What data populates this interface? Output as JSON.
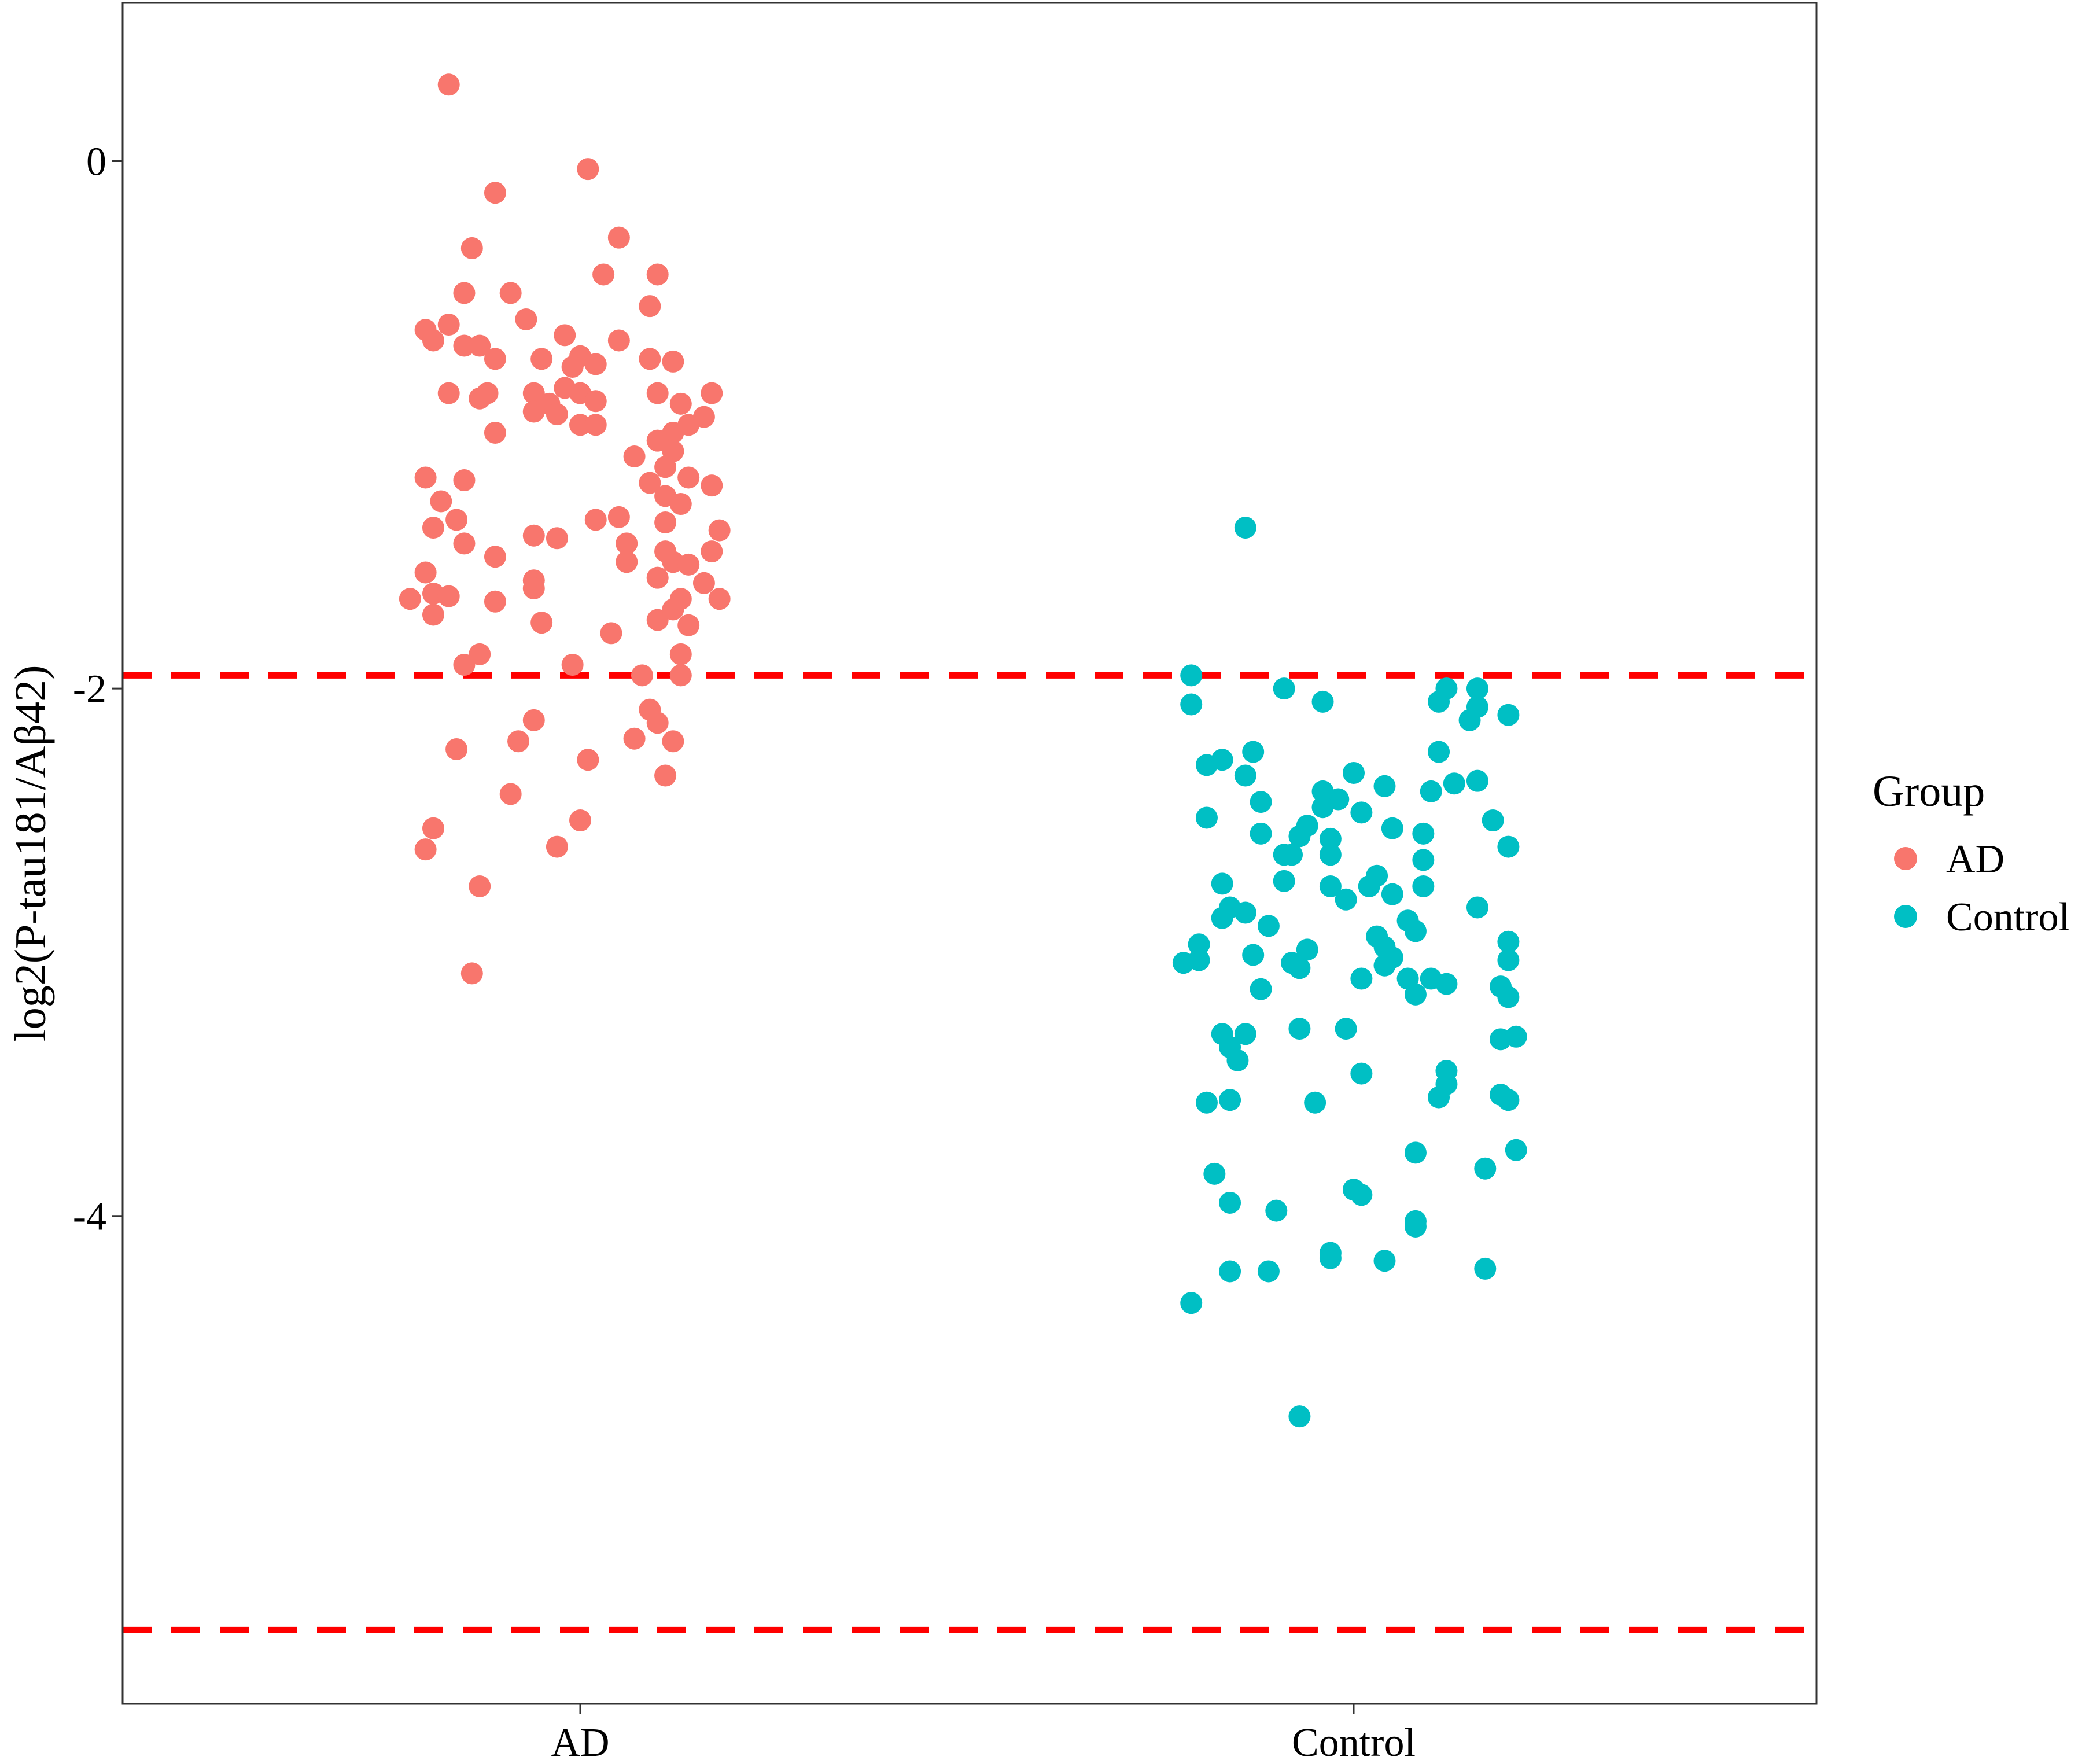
{
  "chart_data": {
    "type": "scatter",
    "title": "",
    "xlabel": "",
    "ylabel": "log2(P-tau181/Aβ42)",
    "categories": [
      "AD",
      "Control"
    ],
    "ylim": [
      -5.85,
      0.6
    ],
    "yticks": [
      0,
      -2,
      -4
    ],
    "ytick_labels": [
      "0",
      "-2",
      "-4"
    ],
    "grid": false,
    "reference_lines": [
      {
        "y": -1.95,
        "color": "#ff0000",
        "style": "dashed"
      },
      {
        "y": -5.57,
        "color": "#ff0000",
        "style": "dashed"
      }
    ],
    "legend": {
      "title": "Group",
      "placement": "right",
      "entries": [
        {
          "label": "AD",
          "color": "#f8766d"
        },
        {
          "label": "Control",
          "color": "#00bfc4"
        }
      ]
    },
    "series": [
      {
        "name": "AD",
        "color": "#f8766d",
        "points": [
          {
            "x": -0.17,
            "y": 0.29
          },
          {
            "x": 0.01,
            "y": -0.03
          },
          {
            "x": -0.11,
            "y": -0.12
          },
          {
            "x": 0.05,
            "y": -0.29
          },
          {
            "x": -0.14,
            "y": -0.33
          },
          {
            "x": 0.03,
            "y": -0.43
          },
          {
            "x": 0.1,
            "y": -0.43
          },
          {
            "x": -0.15,
            "y": -0.5
          },
          {
            "x": -0.09,
            "y": -0.5
          },
          {
            "x": 0.09,
            "y": -0.55
          },
          {
            "x": -0.07,
            "y": -0.6
          },
          {
            "x": -0.2,
            "y": -0.64
          },
          {
            "x": -0.17,
            "y": -0.62
          },
          {
            "x": -0.19,
            "y": -0.68
          },
          {
            "x": -0.15,
            "y": -0.7
          },
          {
            "x": -0.13,
            "y": -0.7
          },
          {
            "x": -0.11,
            "y": -0.75
          },
          {
            "x": -0.05,
            "y": -0.75
          },
          {
            "x": -0.02,
            "y": -0.66
          },
          {
            "x": 0.0,
            "y": -0.74
          },
          {
            "x": 0.05,
            "y": -0.68
          },
          {
            "x": -0.01,
            "y": -0.78
          },
          {
            "x": 0.02,
            "y": -0.77
          },
          {
            "x": 0.09,
            "y": -0.75
          },
          {
            "x": 0.12,
            "y": -0.76
          },
          {
            "x": -0.17,
            "y": -0.88
          },
          {
            "x": -0.13,
            "y": -0.9
          },
          {
            "x": -0.12,
            "y": -0.88
          },
          {
            "x": -0.06,
            "y": -0.88
          },
          {
            "x": -0.04,
            "y": -0.92
          },
          {
            "x": -0.02,
            "y": -0.86
          },
          {
            "x": 0.0,
            "y": -0.88
          },
          {
            "x": 0.02,
            "y": -0.91
          },
          {
            "x": -0.06,
            "y": -0.95
          },
          {
            "x": -0.03,
            "y": -0.96
          },
          {
            "x": 0.0,
            "y": -1.0
          },
          {
            "x": 0.02,
            "y": -1.0
          },
          {
            "x": -0.11,
            "y": -1.03
          },
          {
            "x": 0.1,
            "y": -0.88
          },
          {
            "x": 0.13,
            "y": -0.92
          },
          {
            "x": 0.17,
            "y": -0.88
          },
          {
            "x": 0.16,
            "y": -0.97
          },
          {
            "x": 0.14,
            "y": -1.0
          },
          {
            "x": 0.12,
            "y": -1.03
          },
          {
            "x": 0.1,
            "y": -1.06
          },
          {
            "x": 0.12,
            "y": -1.1
          },
          {
            "x": 0.11,
            "y": -1.16
          },
          {
            "x": 0.07,
            "y": -1.12
          },
          {
            "x": -0.2,
            "y": -1.2
          },
          {
            "x": -0.15,
            "y": -1.21
          },
          {
            "x": -0.18,
            "y": -1.29
          },
          {
            "x": -0.16,
            "y": -1.36
          },
          {
            "x": -0.19,
            "y": -1.39
          },
          {
            "x": -0.15,
            "y": -1.45
          },
          {
            "x": -0.06,
            "y": -1.42
          },
          {
            "x": -0.03,
            "y": -1.43
          },
          {
            "x": 0.02,
            "y": -1.36
          },
          {
            "x": 0.05,
            "y": -1.35
          },
          {
            "x": 0.09,
            "y": -1.22
          },
          {
            "x": 0.11,
            "y": -1.27
          },
          {
            "x": 0.13,
            "y": -1.3
          },
          {
            "x": 0.11,
            "y": -1.37
          },
          {
            "x": 0.14,
            "y": -1.2
          },
          {
            "x": 0.17,
            "y": -1.23
          },
          {
            "x": 0.18,
            "y": -1.4
          },
          {
            "x": 0.17,
            "y": -1.48
          },
          {
            "x": 0.06,
            "y": -1.45
          },
          {
            "x": 0.06,
            "y": -1.52
          },
          {
            "x": 0.11,
            "y": -1.48
          },
          {
            "x": 0.12,
            "y": -1.52
          },
          {
            "x": 0.14,
            "y": -1.53
          },
          {
            "x": 0.1,
            "y": -1.58
          },
          {
            "x": 0.16,
            "y": -1.6
          },
          {
            "x": -0.22,
            "y": -1.66
          },
          {
            "x": -0.19,
            "y": -1.64
          },
          {
            "x": -0.17,
            "y": -1.65
          },
          {
            "x": -0.2,
            "y": -1.56
          },
          {
            "x": -0.19,
            "y": -1.72
          },
          {
            "x": -0.11,
            "y": -1.5
          },
          {
            "x": -0.11,
            "y": -1.67
          },
          {
            "x": -0.06,
            "y": -1.59
          },
          {
            "x": -0.06,
            "y": -1.62
          },
          {
            "x": -0.05,
            "y": -1.75
          },
          {
            "x": 0.04,
            "y": -1.79
          },
          {
            "x": 0.1,
            "y": -1.74
          },
          {
            "x": 0.12,
            "y": -1.7
          },
          {
            "x": 0.14,
            "y": -1.76
          },
          {
            "x": 0.13,
            "y": -1.66
          },
          {
            "x": 0.18,
            "y": -1.66
          },
          {
            "x": -0.15,
            "y": -1.91
          },
          {
            "x": -0.13,
            "y": -1.87
          },
          {
            "x": -0.01,
            "y": -1.91
          },
          {
            "x": 0.08,
            "y": -1.95
          },
          {
            "x": 0.13,
            "y": -1.87
          },
          {
            "x": 0.13,
            "y": -1.95
          },
          {
            "x": -0.06,
            "y": -2.12
          },
          {
            "x": -0.08,
            "y": -2.2
          },
          {
            "x": 0.09,
            "y": -2.08
          },
          {
            "x": 0.1,
            "y": -2.13
          },
          {
            "x": 0.07,
            "y": -2.19
          },
          {
            "x": 0.12,
            "y": -2.2
          },
          {
            "x": -0.16,
            "y": -2.23
          },
          {
            "x": 0.01,
            "y": -2.27
          },
          {
            "x": 0.11,
            "y": -2.33
          },
          {
            "x": -0.09,
            "y": -2.4
          },
          {
            "x": 0.0,
            "y": -2.5
          },
          {
            "x": -0.19,
            "y": -2.53
          },
          {
            "x": -0.2,
            "y": -2.61
          },
          {
            "x": -0.03,
            "y": -2.6
          },
          {
            "x": -0.13,
            "y": -2.75
          },
          {
            "x": -0.14,
            "y": -3.08
          }
        ]
      },
      {
        "name": "Control",
        "color": "#00bfc4",
        "points": [
          {
            "x": -0.14,
            "y": -1.39
          },
          {
            "x": -0.21,
            "y": -1.95
          },
          {
            "x": -0.09,
            "y": -2.0
          },
          {
            "x": 0.12,
            "y": -2.0
          },
          {
            "x": 0.16,
            "y": -2.0
          },
          {
            "x": -0.04,
            "y": -2.05
          },
          {
            "x": 0.11,
            "y": -2.05
          },
          {
            "x": 0.16,
            "y": -2.07
          },
          {
            "x": 0.2,
            "y": -2.1
          },
          {
            "x": -0.21,
            "y": -2.06
          },
          {
            "x": 0.15,
            "y": -2.12
          },
          {
            "x": -0.19,
            "y": -2.29
          },
          {
            "x": -0.17,
            "y": -2.27
          },
          {
            "x": -0.13,
            "y": -2.24
          },
          {
            "x": -0.14,
            "y": -2.33
          },
          {
            "x": -0.19,
            "y": -2.49
          },
          {
            "x": -0.12,
            "y": -2.43
          },
          {
            "x": 0.11,
            "y": -2.24
          },
          {
            "x": 0.13,
            "y": -2.36
          },
          {
            "x": 0.1,
            "y": -2.39
          },
          {
            "x": 0.16,
            "y": -2.35
          },
          {
            "x": 0.18,
            "y": -2.5
          },
          {
            "x": 0.2,
            "y": -2.6
          },
          {
            "x": -0.04,
            "y": -2.39
          },
          {
            "x": -0.02,
            "y": -2.42
          },
          {
            "x": 0.0,
            "y": -2.32
          },
          {
            "x": 0.04,
            "y": -2.37
          },
          {
            "x": -0.04,
            "y": -2.45
          },
          {
            "x": 0.01,
            "y": -2.47
          },
          {
            "x": -0.06,
            "y": -2.52
          },
          {
            "x": -0.07,
            "y": -2.56
          },
          {
            "x": -0.08,
            "y": -2.63
          },
          {
            "x": -0.09,
            "y": -2.63
          },
          {
            "x": -0.03,
            "y": -2.57
          },
          {
            "x": -0.03,
            "y": -2.63
          },
          {
            "x": -0.12,
            "y": -2.55
          },
          {
            "x": 0.05,
            "y": -2.53
          },
          {
            "x": 0.09,
            "y": -2.55
          },
          {
            "x": 0.09,
            "y": -2.65
          },
          {
            "x": -0.17,
            "y": -2.74
          },
          {
            "x": -0.16,
            "y": -2.83
          },
          {
            "x": -0.17,
            "y": -2.87
          },
          {
            "x": -0.14,
            "y": -2.85
          },
          {
            "x": -0.11,
            "y": -2.9
          },
          {
            "x": -0.09,
            "y": -2.73
          },
          {
            "x": -0.03,
            "y": -2.75
          },
          {
            "x": -0.01,
            "y": -2.8
          },
          {
            "x": 0.02,
            "y": -2.75
          },
          {
            "x": 0.03,
            "y": -2.71
          },
          {
            "x": 0.05,
            "y": -2.78
          },
          {
            "x": 0.09,
            "y": -2.75
          },
          {
            "x": 0.07,
            "y": -2.88
          },
          {
            "x": 0.08,
            "y": -2.92
          },
          {
            "x": 0.16,
            "y": -2.83
          },
          {
            "x": -0.2,
            "y": -2.97
          },
          {
            "x": -0.22,
            "y": -3.04
          },
          {
            "x": -0.2,
            "y": -3.03
          },
          {
            "x": -0.13,
            "y": -3.01
          },
          {
            "x": -0.08,
            "y": -3.04
          },
          {
            "x": -0.06,
            "y": -2.99
          },
          {
            "x": -0.07,
            "y": -3.06
          },
          {
            "x": 0.01,
            "y": -3.1
          },
          {
            "x": 0.03,
            "y": -2.94
          },
          {
            "x": 0.04,
            "y": -2.98
          },
          {
            "x": 0.05,
            "y": -3.02
          },
          {
            "x": 0.07,
            "y": -3.1
          },
          {
            "x": 0.08,
            "y": -3.16
          },
          {
            "x": 0.1,
            "y": -3.1
          },
          {
            "x": 0.12,
            "y": -3.12
          },
          {
            "x": 0.2,
            "y": -2.96
          },
          {
            "x": 0.2,
            "y": -3.03
          },
          {
            "x": 0.19,
            "y": -3.13
          },
          {
            "x": 0.2,
            "y": -3.17
          },
          {
            "x": 0.04,
            "y": -3.05
          },
          {
            "x": -0.12,
            "y": -3.14
          },
          {
            "x": -0.17,
            "y": -3.31
          },
          {
            "x": -0.14,
            "y": -3.31
          },
          {
            "x": -0.15,
            "y": -3.41
          },
          {
            "x": -0.16,
            "y": -3.36
          },
          {
            "x": -0.07,
            "y": -3.29
          },
          {
            "x": -0.01,
            "y": -3.29
          },
          {
            "x": 0.01,
            "y": -3.46
          },
          {
            "x": 0.12,
            "y": -3.45
          },
          {
            "x": 0.12,
            "y": -3.5
          },
          {
            "x": 0.19,
            "y": -3.33
          },
          {
            "x": 0.21,
            "y": -3.32
          },
          {
            "x": -0.19,
            "y": -3.57
          },
          {
            "x": -0.16,
            "y": -3.56
          },
          {
            "x": -0.05,
            "y": -3.57
          },
          {
            "x": 0.11,
            "y": -3.55
          },
          {
            "x": 0.19,
            "y": -3.54
          },
          {
            "x": 0.2,
            "y": -3.56
          },
          {
            "x": 0.08,
            "y": -3.76
          },
          {
            "x": 0.21,
            "y": -3.75
          },
          {
            "x": -0.18,
            "y": -3.84
          },
          {
            "x": -0.16,
            "y": -3.95
          },
          {
            "x": 0.0,
            "y": -3.9
          },
          {
            "x": 0.01,
            "y": -3.92
          },
          {
            "x": 0.17,
            "y": -3.82
          },
          {
            "x": -0.1,
            "y": -3.98
          },
          {
            "x": 0.08,
            "y": -4.02
          },
          {
            "x": 0.08,
            "y": -4.04
          },
          {
            "x": -0.03,
            "y": -4.14
          },
          {
            "x": -0.03,
            "y": -4.16
          },
          {
            "x": 0.04,
            "y": -4.17
          },
          {
            "x": -0.16,
            "y": -4.21
          },
          {
            "x": -0.11,
            "y": -4.21
          },
          {
            "x": 0.17,
            "y": -4.2
          },
          {
            "x": -0.21,
            "y": -4.33
          },
          {
            "x": -0.07,
            "y": -4.76
          }
        ]
      }
    ]
  }
}
